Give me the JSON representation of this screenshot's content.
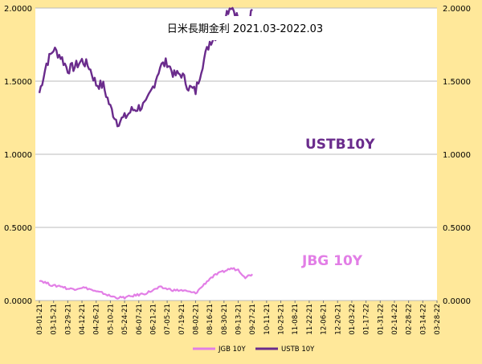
{
  "chart_data": {
    "type": "line",
    "title": "日米長期金利 2021.03-2022.03",
    "colors": {
      "background": "#ffe89a",
      "plot": "#ffffff",
      "ustb": "#6a2b8c",
      "jgb": "#e27ee6",
      "grid": "#bbbbbb"
    },
    "ylim": [
      0,
      2.0
    ],
    "y_ticks": [
      "0.0000",
      "0.5000",
      "1.0000",
      "1.5000",
      "2.0000"
    ],
    "x_ticks": [
      "03-01-21",
      "03-15-21",
      "03-29-21",
      "04-12-21",
      "04-26-21",
      "05-10-21",
      "05-24-21",
      "06-07-21",
      "06-21-21",
      "07-05-21",
      "07-19-21",
      "08-02-21",
      "08-16-21",
      "08-30-21",
      "09-13-21",
      "09-27-21",
      "10-11-21",
      "10-25-21",
      "11-08-21",
      "11-22-21",
      "12-06-21",
      "12-20-21",
      "01-03-22",
      "01-17-22",
      "01-31-22",
      "02-14-22",
      "02-28-22",
      "03-14-22",
      "03-28-22"
    ],
    "annotations": {
      "ustb": "USTB10Y",
      "jgb": "JBG 10Y"
    },
    "series": [
      {
        "name": "USTB 10Y",
        "weekly": [
          1.42,
          1.62,
          1.72,
          1.67,
          1.58,
          1.6,
          1.64,
          1.6,
          1.48,
          1.47,
          1.32,
          1.22,
          1.25,
          1.3,
          1.32,
          1.34,
          1.46,
          1.6,
          1.63,
          1.54,
          1.55,
          1.46,
          1.43,
          1.62,
          1.77,
          1.82,
          1.94,
          2.02,
          1.93,
          1.82,
          1.99
        ]
      },
      {
        "name": "JGB 10Y",
        "weekly": [
          0.14,
          0.12,
          0.1,
          0.1,
          0.08,
          0.08,
          0.09,
          0.08,
          0.06,
          0.05,
          0.03,
          0.02,
          0.02,
          0.03,
          0.04,
          0.05,
          0.07,
          0.09,
          0.08,
          0.07,
          0.07,
          0.06,
          0.05,
          0.1,
          0.15,
          0.18,
          0.2,
          0.22,
          0.21,
          0.16,
          0.18
        ]
      }
    ]
  }
}
